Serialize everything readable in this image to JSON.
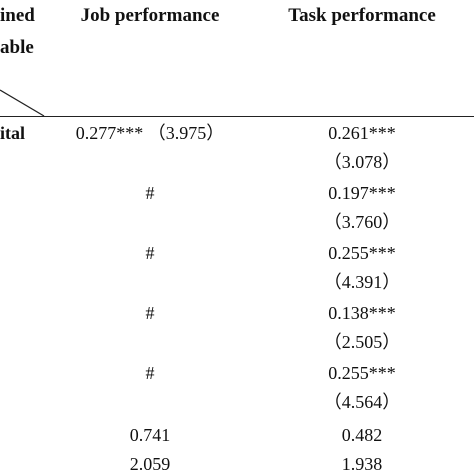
{
  "header": {
    "corner_line1": "ined",
    "corner_line2": "able",
    "col1": "Job performance",
    "col2": "Task performance"
  },
  "rows": [
    {
      "label": "ital",
      "col1": "0.277*** （3.975）",
      "col2_coef": "0.261***",
      "col2_t": "（3.078）"
    },
    {
      "label": "",
      "col1": "#",
      "col2_coef": "0.197***",
      "col2_t": "（3.760）"
    },
    {
      "label": "",
      "col1": "#",
      "col2_coef": "0.255***",
      "col2_t": "（4.391）"
    },
    {
      "label": "",
      "col1": "#",
      "col2_coef": "0.138***",
      "col2_t": "（2.505）"
    },
    {
      "label": "",
      "col1": "#",
      "col2_coef": "0.255***",
      "col2_t": "（4.564）"
    }
  ],
  "footer": [
    {
      "col1": "0.741",
      "col2": "0.482"
    },
    {
      "col1": "2.059",
      "col2": "1.938"
    }
  ]
}
